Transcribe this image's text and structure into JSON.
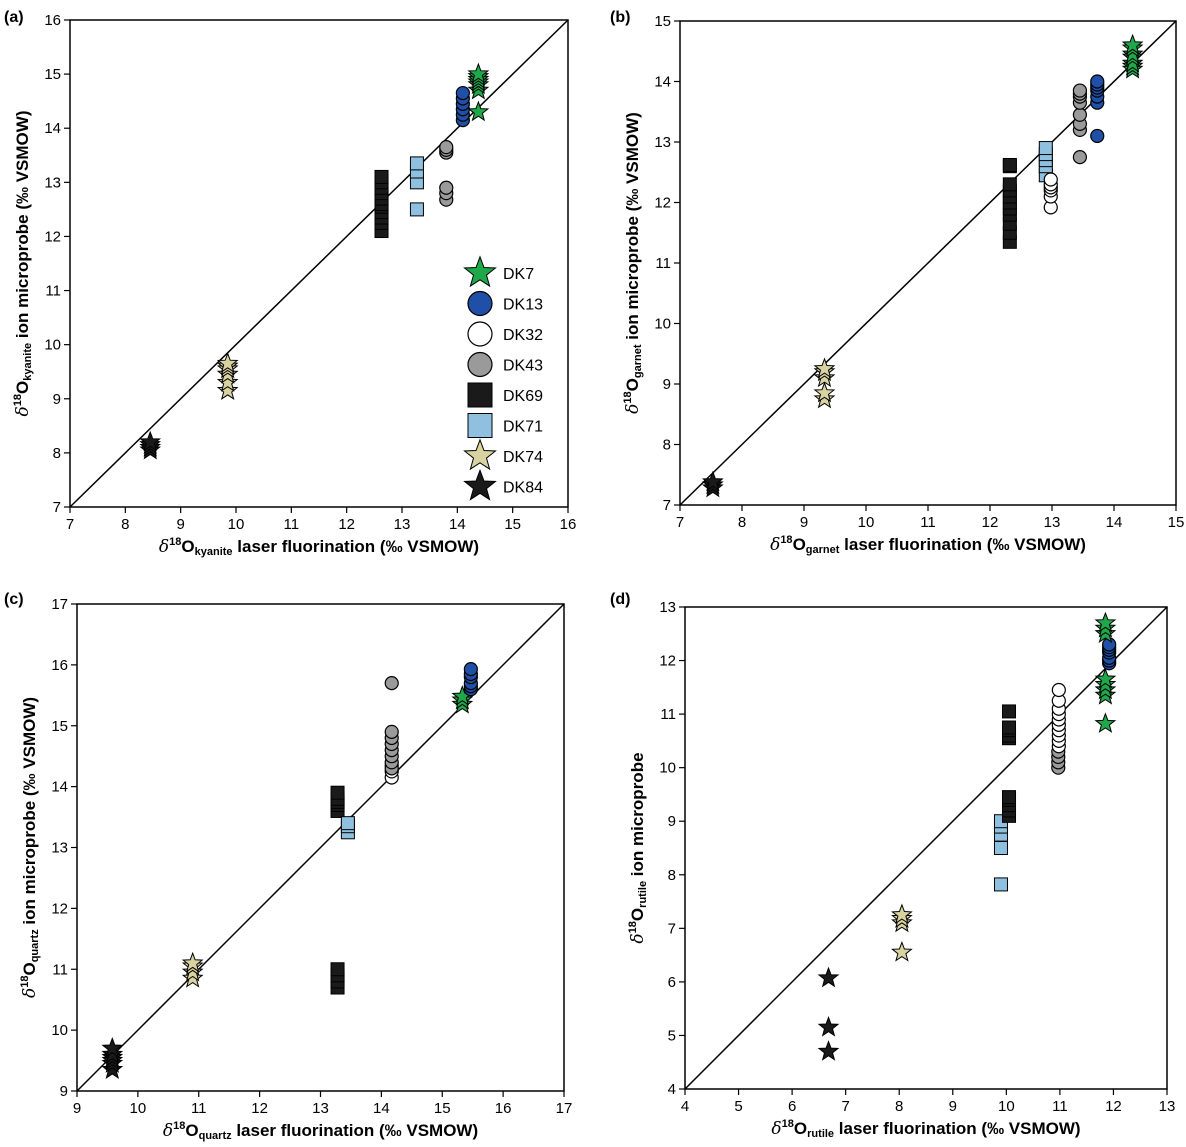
{
  "colors": {
    "DK7": "#1ea84a",
    "DK13": "#1f4fa6",
    "DK32": "#ffffff",
    "DK43": "#9a9a9a",
    "DK69": "#1a1a1a",
    "DK71": "#8fc0df",
    "DK74": "#d8d3a0",
    "DK84": "#1a1a1a"
  },
  "markers": {
    "DK7": "star",
    "DK13": "circle",
    "DK32": "circle",
    "DK43": "circle",
    "DK69": "square",
    "DK71": "square",
    "DK74": "star",
    "DK84": "star"
  },
  "legend": {
    "panel": 0,
    "entries": [
      "DK7",
      "DK13",
      "DK32",
      "DK43",
      "DK69",
      "DK71",
      "DK74",
      "DK84"
    ]
  },
  "chart_data": [
    {
      "type": "scatter",
      "panel_label": "(a)",
      "mineral": "kyanite",
      "xlabel_main": "O",
      "xlabel_rest": " laser fluorination (‰ VSMOW)",
      "ylabel_rest": " ion microprobe (‰ VSMOW)",
      "xlim": [
        7,
        16
      ],
      "ylim": [
        7,
        16
      ],
      "xticks": [
        "7",
        "8",
        "9",
        "10",
        "11",
        "12",
        "13",
        "14",
        "15",
        "16"
      ],
      "yticks": [
        "7",
        "8",
        "9",
        "10",
        "11",
        "12",
        "13",
        "14",
        "15",
        "16"
      ],
      "one_to_one_line": true,
      "series": [
        {
          "name": "DK84",
          "x": [
            8.45,
            8.45,
            8.45,
            8.45
          ],
          "y": [
            8.05,
            8.1,
            8.15,
            8.2
          ]
        },
        {
          "name": "DK74",
          "x": [
            9.85,
            9.85,
            9.85,
            9.85,
            9.85,
            9.85
          ],
          "y": [
            9.15,
            9.3,
            9.45,
            9.55,
            9.6,
            9.65
          ]
        },
        {
          "name": "DK69",
          "x": [
            12.63,
            12.63,
            12.63,
            12.63,
            12.63,
            12.63,
            12.63,
            12.63,
            12.63,
            12.63,
            12.63
          ],
          "y": [
            12.1,
            12.25,
            12.35,
            12.45,
            12.55,
            12.6,
            12.7,
            12.8,
            12.9,
            13.0,
            13.1
          ]
        },
        {
          "name": "DK71",
          "x": [
            13.27,
            13.27,
            13.27,
            13.27
          ],
          "y": [
            12.5,
            13.0,
            13.2,
            13.35
          ]
        },
        {
          "name": "DK43",
          "x": [
            13.8,
            13.8,
            13.8,
            13.8,
            13.8,
            13.8
          ],
          "y": [
            12.68,
            12.8,
            12.9,
            13.55,
            13.6,
            13.65
          ]
        },
        {
          "name": "DK13",
          "x": [
            14.1,
            14.1,
            14.1,
            14.1,
            14.1,
            14.1
          ],
          "y": [
            14.15,
            14.25,
            14.35,
            14.45,
            14.55,
            14.65
          ]
        },
        {
          "name": "DK7",
          "x": [
            14.38,
            14.38,
            14.38,
            14.38,
            14.38,
            14.38,
            14.38
          ],
          "y": [
            14.3,
            14.7,
            14.8,
            14.85,
            14.9,
            14.95,
            15.0
          ]
        }
      ]
    },
    {
      "type": "scatter",
      "panel_label": "(b)",
      "mineral": "garnet",
      "xlabel_main": "O",
      "xlabel_rest": " laser fluorination (‰ VSMOW)",
      "ylabel_rest": " ion microprobe (‰ VSMOW)",
      "xlim": [
        7,
        15
      ],
      "ylim": [
        7,
        15
      ],
      "xticks": [
        "7",
        "8",
        "9",
        "10",
        "11",
        "12",
        "13",
        "14",
        "15"
      ],
      "yticks": [
        "7",
        "8",
        "9",
        "10",
        "11",
        "12",
        "13",
        "14",
        "15"
      ],
      "one_to_one_line": true,
      "series": [
        {
          "name": "DK84",
          "x": [
            7.53,
            7.53,
            7.53
          ],
          "y": [
            7.28,
            7.33,
            7.38
          ]
        },
        {
          "name": "DK74",
          "x": [
            9.33,
            9.33,
            9.33,
            9.33,
            9.33
          ],
          "y": [
            8.75,
            8.85,
            9.1,
            9.2,
            9.25
          ]
        },
        {
          "name": "DK69",
          "x": [
            12.32,
            12.32,
            12.32,
            12.32,
            12.32,
            12.32,
            12.32,
            12.32,
            12.32,
            12.32,
            12.32
          ],
          "y": [
            11.35,
            11.5,
            11.65,
            11.8,
            11.9,
            12.0,
            12.1,
            12.2,
            12.3,
            12.6,
            12.62
          ]
        },
        {
          "name": "DK71",
          "x": [
            12.9,
            12.9,
            12.9,
            12.9,
            12.9
          ],
          "y": [
            12.45,
            12.6,
            12.7,
            12.8,
            12.9
          ]
        },
        {
          "name": "DK32",
          "x": [
            12.98,
            12.98,
            12.98,
            12.98,
            12.98,
            12.98
          ],
          "y": [
            11.92,
            12.1,
            12.2,
            12.25,
            12.3,
            12.38
          ]
        },
        {
          "name": "DK43",
          "x": [
            13.45,
            13.45,
            13.45,
            13.45,
            13.45,
            13.45,
            13.45,
            13.45
          ],
          "y": [
            12.75,
            13.2,
            13.3,
            13.45,
            13.65,
            13.75,
            13.8,
            13.85
          ]
        },
        {
          "name": "DK13",
          "x": [
            13.73,
            13.73,
            13.73,
            13.73,
            13.73,
            13.73,
            13.73
          ],
          "y": [
            13.1,
            13.65,
            13.75,
            13.85,
            13.9,
            13.95,
            14.0
          ]
        },
        {
          "name": "DK7",
          "x": [
            14.3,
            14.3,
            14.3,
            14.3,
            14.3,
            14.3,
            14.3
          ],
          "y": [
            14.2,
            14.25,
            14.3,
            14.4,
            14.45,
            14.55,
            14.6
          ]
        }
      ]
    },
    {
      "type": "scatter",
      "panel_label": "(c)",
      "mineral": "quartz",
      "xlabel_main": "O",
      "xlabel_rest": " laser fluorination (‰ VSMOW)",
      "ylabel_rest": " ion microprobe (‰ VSMOW)",
      "xlim": [
        9,
        17
      ],
      "ylim": [
        9,
        17
      ],
      "xticks": [
        "9",
        "10",
        "11",
        "12",
        "13",
        "14",
        "15",
        "16",
        "17"
      ],
      "yticks": [
        "9",
        "10",
        "11",
        "12",
        "13",
        "14",
        "15",
        "16",
        "17"
      ],
      "one_to_one_line": true,
      "series": [
        {
          "name": "DK84",
          "x": [
            9.58,
            9.58,
            9.58,
            9.58,
            9.58,
            9.58
          ],
          "y": [
            9.35,
            9.45,
            9.5,
            9.55,
            9.6,
            9.7
          ]
        },
        {
          "name": "DK74",
          "x": [
            10.9,
            10.9,
            10.9,
            10.9
          ],
          "y": [
            10.85,
            10.95,
            11.05,
            11.1
          ]
        },
        {
          "name": "DK69",
          "x": [
            13.28,
            13.28,
            13.28,
            13.28,
            13.28,
            13.28,
            13.28,
            13.28,
            13.28
          ],
          "y": [
            10.7,
            10.8,
            10.9,
            11.0,
            13.6,
            13.7,
            13.75,
            13.8,
            13.9
          ]
        },
        {
          "name": "DK71",
          "x": [
            13.45,
            13.45,
            13.45
          ],
          "y": [
            13.25,
            13.35,
            13.4
          ]
        },
        {
          "name": "DK32",
          "x": [
            14.17,
            14.17,
            14.17
          ],
          "y": [
            14.15,
            14.25,
            14.35
          ]
        },
        {
          "name": "DK43",
          "x": [
            14.17,
            14.17,
            14.17,
            14.17,
            14.17,
            14.17,
            14.17,
            14.17
          ],
          "y": [
            14.3,
            14.4,
            14.5,
            14.6,
            14.7,
            14.8,
            14.9,
            15.7
          ]
        },
        {
          "name": "DK7",
          "x": [
            15.33,
            15.33,
            15.33
          ],
          "y": [
            15.35,
            15.42,
            15.48
          ]
        },
        {
          "name": "DK13",
          "x": [
            15.47,
            15.47,
            15.47,
            15.47,
            15.47,
            15.47
          ],
          "y": [
            15.6,
            15.65,
            15.7,
            15.8,
            15.85,
            15.93
          ]
        }
      ]
    },
    {
      "type": "scatter",
      "panel_label": "(d)",
      "mineral": "rutile",
      "xlabel_main": "O",
      "xlabel_rest": " laser fluorination (‰ VSMOW)",
      "ylabel_rest": " ion microprobe",
      "xlim": [
        4,
        13
      ],
      "ylim": [
        4,
        13
      ],
      "xticks": [
        "4",
        "5",
        "6",
        "7",
        "8",
        "9",
        "10",
        "11",
        "12",
        "13"
      ],
      "yticks": [
        "4",
        "5",
        "6",
        "7",
        "8",
        "9",
        "10",
        "11",
        "12",
        "13"
      ],
      "one_to_one_line": true,
      "series": [
        {
          "name": "DK84",
          "x": [
            6.68,
            6.68,
            6.68
          ],
          "y": [
            4.7,
            5.15,
            6.07
          ]
        },
        {
          "name": "DK74",
          "x": [
            8.05,
            8.05,
            8.05,
            8.05
          ],
          "y": [
            6.55,
            7.1,
            7.18,
            7.25
          ]
        },
        {
          "name": "DK71",
          "x": [
            9.9,
            9.9,
            9.9,
            9.9,
            9.9
          ],
          "y": [
            7.82,
            8.5,
            8.75,
            8.9,
            9.0
          ]
        },
        {
          "name": "DK69",
          "x": [
            10.05,
            10.05,
            10.05,
            10.05,
            10.05,
            10.05,
            10.05,
            10.05,
            10.05,
            10.05
          ],
          "y": [
            9.1,
            9.2,
            9.3,
            9.4,
            9.45,
            10.55,
            10.6,
            10.7,
            10.75,
            11.05
          ]
        },
        {
          "name": "DK43",
          "x": [
            10.97,
            10.97,
            10.97,
            10.97
          ],
          "y": [
            10.0,
            10.1,
            10.2,
            10.3
          ]
        },
        {
          "name": "DK32",
          "x": [
            10.98,
            10.98,
            10.98,
            10.98,
            10.98,
            10.98,
            10.98,
            10.98,
            10.98,
            10.98
          ],
          "y": [
            10.4,
            10.5,
            10.6,
            10.7,
            10.8,
            10.9,
            11.0,
            11.1,
            11.25,
            11.45
          ]
        },
        {
          "name": "DK13",
          "x": [
            11.92,
            11.92,
            11.92,
            11.92,
            11.92,
            11.92,
            11.92
          ],
          "y": [
            11.95,
            12.0,
            12.05,
            12.15,
            12.2,
            12.25,
            12.3
          ]
        },
        {
          "name": "DK7",
          "x": [
            11.85,
            11.85,
            11.85,
            11.85,
            11.85,
            11.85,
            11.85,
            11.85
          ],
          "y": [
            10.82,
            11.35,
            11.45,
            11.55,
            11.65,
            12.5,
            12.6,
            12.7
          ]
        }
      ]
    }
  ]
}
